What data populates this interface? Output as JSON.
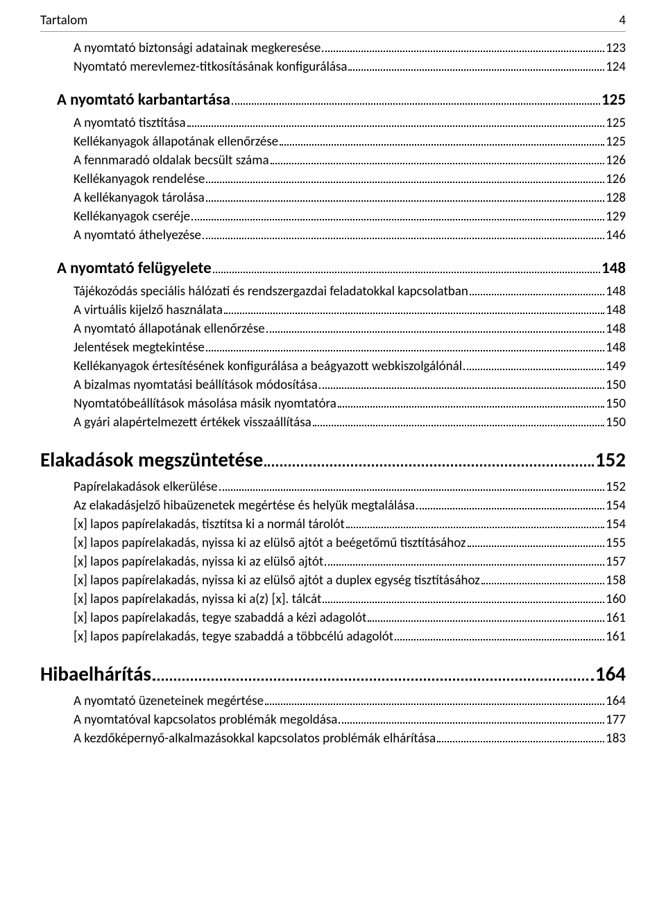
{
  "header": {
    "title": "Tartalom",
    "page": "4"
  },
  "colors": {
    "text": "#000000",
    "background": "#ffffff",
    "dots": "#000000",
    "rule": "#999999"
  },
  "typography": {
    "h1_size_pt": 22,
    "h1_weight": 700,
    "h2_size_pt": 17,
    "h2_weight": 700,
    "h3_size_pt": 14,
    "h3_weight": 400,
    "header_size_pt": 14
  },
  "toc": [
    {
      "level": 3,
      "label": "A nyomtató biztonsági adatainak megkeresése",
      "page": "123"
    },
    {
      "level": 3,
      "label": "Nyomtató merevlemez-titkosításának konfigurálása",
      "page": "124"
    },
    {
      "level": 2,
      "label": "A nyomtató karbantartása",
      "page": "125"
    },
    {
      "level": 3,
      "label": "A nyomtató tisztítása",
      "page": "125"
    },
    {
      "level": 3,
      "label": "Kellékanyagok állapotának ellenőrzése",
      "page": "125"
    },
    {
      "level": 3,
      "label": "A fennmaradó oldalak becsült száma",
      "page": "126"
    },
    {
      "level": 3,
      "label": "Kellékanyagok rendelése",
      "page": "126"
    },
    {
      "level": 3,
      "label": "A kellékanyagok tárolása",
      "page": "128"
    },
    {
      "level": 3,
      "label": "Kellékanyagok cseréje",
      "page": "129"
    },
    {
      "level": 3,
      "label": "A nyomtató áthelyezése",
      "page": "146"
    },
    {
      "level": 2,
      "label": "A nyomtató felügyelete",
      "page": "148"
    },
    {
      "level": 3,
      "label": "Tájékozódás speciális hálózati és rendszergazdai feladatokkal kapcsolatban",
      "page": "148"
    },
    {
      "level": 3,
      "label": "A virtuális kijelző használata",
      "page": "148"
    },
    {
      "level": 3,
      "label": "A nyomtató állapotának ellenőrzése",
      "page": "148"
    },
    {
      "level": 3,
      "label": "Jelentések megtekintése",
      "page": "148"
    },
    {
      "level": 3,
      "label": "Kellékanyagok értesítésének konfigurálása a beágyazott webkiszolgálónál",
      "page": "149"
    },
    {
      "level": 3,
      "label": "A bizalmas nyomtatási beállítások módosítása",
      "page": "150"
    },
    {
      "level": 3,
      "label": "Nyomtatóbeállítások másolása másik nyomtatóra",
      "page": "150"
    },
    {
      "level": 3,
      "label": "A gyári alapértelmezett értékek visszaállítása",
      "page": "150"
    },
    {
      "level": 1,
      "label": "Elakadások megszüntetése",
      "page": "152"
    },
    {
      "level": 3,
      "label": "Papírelakadások elkerülése",
      "page": "152"
    },
    {
      "level": 3,
      "label": "Az elakadásjelző hibaüzenetek megértése és helyük megtalálása",
      "page": "154"
    },
    {
      "level": 3,
      "label": "[x] lapos papírelakadás, tisztítsa ki a normál tárolót",
      "page": "154"
    },
    {
      "level": 3,
      "label": "[x] lapos papírelakadás, nyissa ki az elülső ajtót a beégetőmű tisztításához",
      "page": "155"
    },
    {
      "level": 3,
      "label": "[x] lapos papírelakadás, nyissa ki az elülső ajtót",
      "page": "157"
    },
    {
      "level": 3,
      "label": "[x] lapos papírelakadás, nyissa ki az elülső ajtót a duplex egység tisztításához",
      "page": "158"
    },
    {
      "level": 3,
      "label": "[x] lapos papírelakadás, nyissa ki a(z) [x]. tálcát",
      "page": "160"
    },
    {
      "level": 3,
      "label": "[x] lapos papírelakadás, tegye szabaddá a kézi adagolót",
      "page": "161"
    },
    {
      "level": 3,
      "label": "[x] lapos papírelakadás, tegye szabaddá a többcélú adagolót",
      "page": "161"
    },
    {
      "level": 1,
      "label": "Hibaelhárítás",
      "page": "164"
    },
    {
      "level": 3,
      "label": "A nyomtató üzeneteinek megértése",
      "page": "164"
    },
    {
      "level": 3,
      "label": "A nyomtatóval kapcsolatos problémák megoldása",
      "page": "177"
    },
    {
      "level": 3,
      "label": "A kezdőképernyő-alkalmazásokkal kapcsolatos problémák elhárítása",
      "page": "183"
    }
  ]
}
